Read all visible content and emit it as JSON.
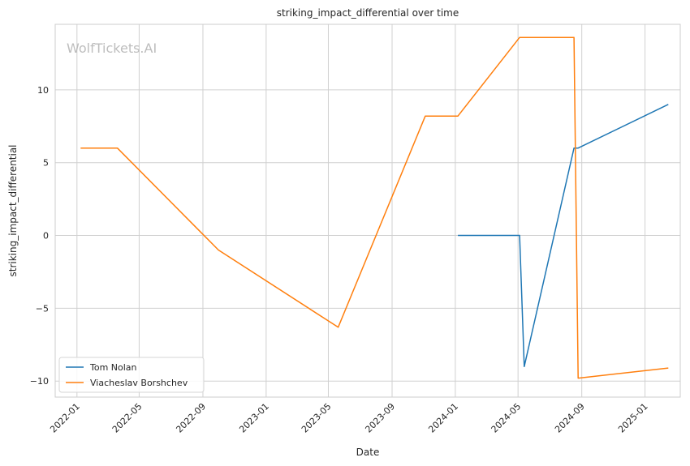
{
  "watermark": "WolfTickets.AI",
  "chart_data": {
    "type": "line",
    "title": "striking_impact_differential over time",
    "xlabel": "Date",
    "ylabel": "striking_impact_differential",
    "x_axis_type": "date",
    "xlim": [
      "2021-11-20",
      "2025-03-10"
    ],
    "ylim": [
      -11.1,
      14.5
    ],
    "x_ticks": [
      "2022-01",
      "2022-05",
      "2022-09",
      "2023-01",
      "2023-05",
      "2023-09",
      "2024-01",
      "2024-05",
      "2024-09",
      "2025-01"
    ],
    "y_ticks": [
      -10,
      -5,
      0,
      5,
      10
    ],
    "y_tick_labels": [
      "−10",
      "−5",
      "0",
      "5",
      "10"
    ],
    "grid": true,
    "legend_position": "lower-left",
    "series": [
      {
        "name": "Tom Nolan",
        "color": "#1f77b4",
        "points": [
          {
            "x": "2024-01-06",
            "y": 0
          },
          {
            "x": "2024-05-04",
            "y": 0
          },
          {
            "x": "2024-05-13",
            "y": -9
          },
          {
            "x": "2024-08-17",
            "y": 6
          },
          {
            "x": "2024-08-25",
            "y": 6
          },
          {
            "x": "2025-02-15",
            "y": 9
          }
        ]
      },
      {
        "name": "Viacheslav Borshchev",
        "color": "#ff7f0e",
        "points": [
          {
            "x": "2022-01-08",
            "y": 6
          },
          {
            "x": "2022-03-20",
            "y": 6
          },
          {
            "x": "2022-10-01",
            "y": -1
          },
          {
            "x": "2023-05-20",
            "y": -6.3
          },
          {
            "x": "2023-11-04",
            "y": 8.2
          },
          {
            "x": "2024-01-06",
            "y": 8.2
          },
          {
            "x": "2024-05-04",
            "y": 13.6
          },
          {
            "x": "2024-08-17",
            "y": 13.6
          },
          {
            "x": "2024-08-25",
            "y": -9.8
          },
          {
            "x": "2025-02-15",
            "y": -9.1
          }
        ]
      }
    ]
  }
}
